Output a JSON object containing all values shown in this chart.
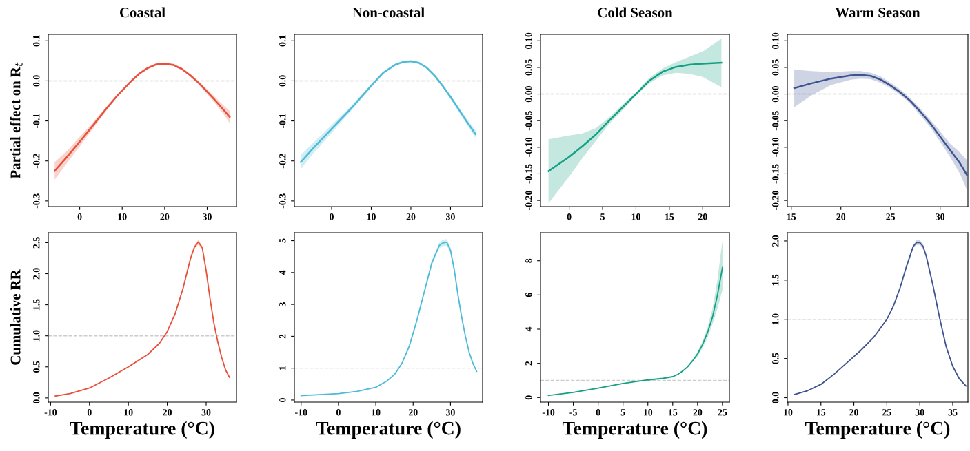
{
  "chart_data": [
    {
      "type": "line",
      "title": "Coastal",
      "ylabel": "Partial effect on R$_{t}$",
      "xlim": [
        -7.4,
        36.9
      ],
      "ylim": [
        -0.314,
        0.116
      ],
      "xticks": [
        0,
        10,
        20,
        30
      ],
      "yticks": [
        {
          "value": 0.1,
          "label": "0.1"
        },
        {
          "value": 0,
          "label": "0.0"
        },
        {
          "value": -0.1,
          "label": "-0.1"
        },
        {
          "value": -0.2,
          "label": "-0.2"
        },
        {
          "value": -0.3,
          "label": "-0.3"
        }
      ],
      "grid": false,
      "ref_lines": [
        {
          "axis": "y",
          "value": 0,
          "color": "#cccccc",
          "line_style": "dashed"
        }
      ],
      "series": [
        {
          "color": "#e8503a",
          "x": [
            -5.9,
            -3,
            0,
            3,
            6,
            9,
            12,
            14,
            16,
            18,
            20,
            22,
            24,
            26,
            28,
            30,
            32,
            34,
            35.3
          ],
          "values": [
            -0.225,
            -0.19,
            -0.152,
            -0.113,
            -0.073,
            -0.035,
            -0.002,
            0.018,
            0.032,
            0.041,
            0.043,
            0.04,
            0.03,
            0.014,
            -0.005,
            -0.027,
            -0.05,
            -0.074,
            -0.09
          ],
          "lower": [
            -0.247,
            -0.205,
            -0.164,
            -0.121,
            -0.078,
            -0.038,
            -0.005,
            0.015,
            0.029,
            0.038,
            0.04,
            0.037,
            0.027,
            0.011,
            -0.009,
            -0.033,
            -0.058,
            -0.085,
            -0.105
          ],
          "upper": [
            -0.203,
            -0.175,
            -0.14,
            -0.105,
            -0.068,
            -0.032,
            0.001,
            0.021,
            0.035,
            0.044,
            0.046,
            0.043,
            0.033,
            0.017,
            -0.001,
            -0.021,
            -0.042,
            -0.063,
            -0.075
          ]
        }
      ]
    },
    {
      "type": "line",
      "title": "Non-coastal",
      "xlim": [
        -9.4,
        38.1
      ],
      "ylim": [
        -0.314,
        0.116
      ],
      "xticks": [
        0,
        10,
        20,
        30
      ],
      "yticks": [
        {
          "value": 0.1,
          "label": "0.1"
        },
        {
          "value": 0,
          "label": "0.0"
        },
        {
          "value": -0.1,
          "label": "-0.1"
        },
        {
          "value": -0.2,
          "label": "-0.2"
        },
        {
          "value": -0.3,
          "label": "-0.3"
        }
      ],
      "grid": false,
      "ref_lines": [
        {
          "axis": "y",
          "value": 0,
          "color": "#cccccc",
          "line_style": "dashed"
        }
      ],
      "series": [
        {
          "color": "#4dbbd8",
          "x": [
            -7.8,
            -5,
            0,
            5,
            10,
            13,
            16,
            18,
            20,
            22,
            24,
            26,
            28,
            30,
            32,
            34,
            36.3
          ],
          "values": [
            -0.203,
            -0.172,
            -0.12,
            -0.068,
            -0.012,
            0.02,
            0.04,
            0.047,
            0.049,
            0.045,
            0.033,
            0.013,
            -0.012,
            -0.04,
            -0.07,
            -0.1,
            -0.133
          ],
          "lower": [
            -0.221,
            -0.186,
            -0.13,
            -0.074,
            -0.016,
            0.017,
            0.037,
            0.044,
            0.046,
            0.042,
            0.03,
            0.01,
            -0.016,
            -0.045,
            -0.076,
            -0.107,
            -0.143
          ],
          "upper": [
            -0.185,
            -0.158,
            -0.11,
            -0.062,
            -0.008,
            0.023,
            0.043,
            0.05,
            0.052,
            0.048,
            0.036,
            0.016,
            -0.008,
            -0.035,
            -0.064,
            -0.093,
            -0.123
          ]
        }
      ]
    },
    {
      "type": "line",
      "title": "Cold Season",
      "xlim": [
        -4.3,
        24.0
      ],
      "ylim": [
        -0.2115,
        0.112
      ],
      "xticks": [
        0,
        5,
        10,
        15,
        20
      ],
      "yticks": [
        {
          "value": 0.1,
          "label": "0.10"
        },
        {
          "value": 0.05,
          "label": "0.05"
        },
        {
          "value": 0,
          "label": "0.00"
        },
        {
          "value": -0.05,
          "label": "-0.05"
        },
        {
          "value": -0.1,
          "label": "-0.10"
        },
        {
          "value": -0.15,
          "label": "-0.15"
        },
        {
          "value": -0.2,
          "label": "-0.20"
        }
      ],
      "grid": false,
      "ref_lines": [
        {
          "axis": "y",
          "value": 0,
          "color": "#cccccc",
          "line_style": "dashed"
        }
      ],
      "series": [
        {
          "color": "#14a085",
          "x": [
            -3.1,
            0,
            2,
            4,
            6,
            8,
            10,
            12,
            14,
            16,
            18,
            20,
            22.8
          ],
          "values": [
            -0.145,
            -0.118,
            -0.098,
            -0.076,
            -0.05,
            -0.025,
            0.0,
            0.025,
            0.042,
            0.051,
            0.055,
            0.057,
            0.059
          ],
          "lower": [
            -0.205,
            -0.155,
            -0.12,
            -0.088,
            -0.056,
            -0.03,
            -0.003,
            0.02,
            0.035,
            0.04,
            0.038,
            0.032,
            0.013
          ],
          "upper": [
            -0.085,
            -0.078,
            -0.074,
            -0.064,
            -0.044,
            -0.02,
            0.003,
            0.03,
            0.048,
            0.06,
            0.07,
            0.08,
            0.104
          ]
        }
      ]
    },
    {
      "type": "line",
      "title": "Warm Season",
      "xlim": [
        14.6,
        32.8
      ],
      "ylim": [
        -0.2115,
        0.112
      ],
      "xticks": [
        15,
        20,
        25,
        30
      ],
      "yticks": [
        {
          "value": 0.1,
          "label": "0.10"
        },
        {
          "value": 0.05,
          "label": "0.05"
        },
        {
          "value": 0,
          "label": "0.00"
        },
        {
          "value": -0.05,
          "label": "-0.05"
        },
        {
          "value": -0.1,
          "label": "-0.10"
        },
        {
          "value": -0.15,
          "label": "-0.15"
        },
        {
          "value": -0.2,
          "label": "-0.20"
        }
      ],
      "grid": false,
      "ref_lines": [
        {
          "axis": "y",
          "value": 0,
          "color": "#cccccc",
          "line_style": "dashed"
        }
      ],
      "series": [
        {
          "color": "#3d5491",
          "x": [
            15.3,
            17,
            19,
            21,
            22,
            23,
            24,
            25,
            26,
            27,
            28,
            29,
            30,
            31,
            32,
            32.7
          ],
          "values": [
            0.011,
            0.02,
            0.029,
            0.035,
            0.036,
            0.034,
            0.027,
            0.016,
            0.003,
            -0.013,
            -0.033,
            -0.055,
            -0.08,
            -0.105,
            -0.13,
            -0.152
          ],
          "lower": [
            -0.025,
            -0.003,
            0.017,
            0.027,
            0.029,
            0.028,
            0.021,
            0.011,
            -0.002,
            -0.018,
            -0.04,
            -0.062,
            -0.09,
            -0.118,
            -0.15,
            -0.18
          ],
          "upper": [
            0.046,
            0.043,
            0.041,
            0.043,
            0.043,
            0.04,
            0.033,
            0.021,
            0.008,
            -0.008,
            -0.027,
            -0.048,
            -0.07,
            -0.093,
            -0.11,
            -0.124
          ]
        }
      ]
    },
    {
      "type": "line",
      "xlabel": "Temperature (°C)",
      "ylabel": "Cumulative RR",
      "xlim": [
        -10.6,
        37.8
      ],
      "ylim": [
        -0.068,
        2.66
      ],
      "xticks": [
        -10,
        0,
        10,
        20,
        30
      ],
      "yticks": [
        {
          "value": 0,
          "label": "0.0"
        },
        {
          "value": 0.5,
          "label": "0.5"
        },
        {
          "value": 1,
          "label": "1.0"
        },
        {
          "value": 1.5,
          "label": "1.5"
        },
        {
          "value": 2,
          "label": "2.0"
        },
        {
          "value": 2.5,
          "label": "2.5"
        }
      ],
      "grid": false,
      "ref_lines": [
        {
          "axis": "y",
          "value": 1,
          "color": "#cccccc",
          "line_style": "dashed"
        }
      ],
      "series": [
        {
          "color": "#e8503a",
          "x": [
            -8.8,
            -5,
            0,
            5,
            10,
            15,
            18,
            20,
            22,
            24,
            25,
            26,
            27,
            28,
            29,
            30,
            31,
            32,
            33,
            34,
            35,
            36
          ],
          "values": [
            0.03,
            0.07,
            0.16,
            0.32,
            0.5,
            0.7,
            0.88,
            1.07,
            1.35,
            1.75,
            2.0,
            2.25,
            2.43,
            2.51,
            2.42,
            2.05,
            1.6,
            1.2,
            0.9,
            0.65,
            0.45,
            0.33
          ],
          "lower": [
            0.025,
            0.065,
            0.155,
            0.315,
            0.495,
            0.69,
            0.87,
            1.06,
            1.33,
            1.73,
            1.97,
            2.22,
            2.4,
            2.47,
            2.39,
            2.02,
            1.58,
            1.18,
            0.88,
            0.64,
            0.44,
            0.32
          ],
          "upper": [
            0.035,
            0.075,
            0.165,
            0.325,
            0.505,
            0.71,
            0.89,
            1.08,
            1.37,
            1.77,
            2.03,
            2.28,
            2.46,
            2.55,
            2.45,
            2.08,
            1.62,
            1.22,
            0.92,
            0.66,
            0.46,
            0.34
          ]
        }
      ]
    },
    {
      "type": "line",
      "xlabel": "Temperature (°C)",
      "xlim": [
        -11.8,
        38.6
      ],
      "ylim": [
        -0.066,
        5.25
      ],
      "xticks": [
        -10,
        0,
        10,
        20,
        30
      ],
      "yticks": [
        0,
        1,
        2,
        3,
        4,
        5
      ],
      "grid": false,
      "ref_lines": [
        {
          "axis": "y",
          "value": 1,
          "color": "#cccccc",
          "line_style": "dashed"
        }
      ],
      "series": [
        {
          "color": "#4dbbd8",
          "x": [
            -10,
            -5,
            0,
            5,
            10,
            13,
            15,
            17,
            19,
            21,
            23,
            25,
            27,
            28,
            29,
            30,
            31,
            32,
            33,
            34,
            35,
            36,
            37
          ],
          "values": [
            0.14,
            0.17,
            0.2,
            0.27,
            0.4,
            0.6,
            0.8,
            1.15,
            1.7,
            2.5,
            3.4,
            4.3,
            4.85,
            4.93,
            4.95,
            4.7,
            4.1,
            3.3,
            2.6,
            2.0,
            1.5,
            1.15,
            0.9
          ],
          "lower": [
            0.13,
            0.16,
            0.19,
            0.26,
            0.39,
            0.59,
            0.78,
            1.12,
            1.66,
            2.45,
            3.34,
            4.22,
            4.76,
            4.83,
            4.85,
            4.6,
            4.02,
            3.24,
            2.55,
            1.96,
            1.47,
            1.12,
            0.86
          ],
          "upper": [
            0.15,
            0.18,
            0.21,
            0.28,
            0.41,
            0.61,
            0.82,
            1.18,
            1.74,
            2.55,
            3.46,
            4.38,
            4.94,
            5.03,
            5.05,
            4.8,
            4.18,
            3.36,
            2.65,
            2.04,
            1.53,
            1.18,
            0.94
          ]
        }
      ]
    },
    {
      "type": "line",
      "xlabel": "Temperature (°C)",
      "xlim": [
        -11.6,
        26.4
      ],
      "ylim": [
        -0.27,
        9.64
      ],
      "xticks": [
        -10,
        -5,
        0,
        5,
        10,
        15,
        20,
        25
      ],
      "yticks": [
        0,
        2,
        4,
        6,
        8
      ],
      "grid": false,
      "ref_lines": [
        {
          "axis": "y",
          "value": 1,
          "color": "#cccccc",
          "line_style": "dashed"
        }
      ],
      "series": [
        {
          "color": "#14a085",
          "x": [
            -10,
            -5,
            0,
            5,
            10,
            13,
            15,
            16,
            17,
            18,
            19,
            20,
            21,
            22,
            23,
            24,
            25
          ],
          "values": [
            0.12,
            0.3,
            0.55,
            0.82,
            1.03,
            1.12,
            1.22,
            1.35,
            1.55,
            1.8,
            2.15,
            2.55,
            3.1,
            3.8,
            4.7,
            6.0,
            7.6
          ],
          "lower": [
            0.1,
            0.28,
            0.53,
            0.8,
            1.01,
            1.1,
            1.2,
            1.32,
            1.51,
            1.75,
            2.08,
            2.4,
            2.9,
            3.5,
            4.3,
            5.2,
            6.3
          ],
          "upper": [
            0.14,
            0.32,
            0.57,
            0.84,
            1.05,
            1.14,
            1.24,
            1.38,
            1.59,
            1.85,
            2.22,
            2.7,
            3.3,
            4.1,
            5.2,
            6.9,
            9.2
          ]
        }
      ]
    },
    {
      "type": "line",
      "xlabel": "Temperature (°C)",
      "xlim": [
        9.9,
        37.3
      ],
      "ylim": [
        -0.057,
        2.105
      ],
      "xticks": [
        10,
        15,
        20,
        25,
        30,
        35
      ],
      "yticks": [
        {
          "value": 0,
          "label": "0.0"
        },
        {
          "value": 0.5,
          "label": "0.5"
        },
        {
          "value": 1,
          "label": "1.0"
        },
        {
          "value": 1.5,
          "label": "1.5"
        },
        {
          "value": 2,
          "label": "2.0"
        }
      ],
      "grid": false,
      "ref_lines": [
        {
          "axis": "y",
          "value": 1,
          "color": "#cccccc",
          "line_style": "dashed"
        }
      ],
      "series": [
        {
          "color": "#3d5491",
          "x": [
            11,
            13,
            15,
            17,
            19,
            21,
            23,
            25,
            26,
            27,
            28,
            29,
            29.5,
            30,
            30.5,
            31,
            32,
            33,
            34,
            35,
            36,
            37
          ],
          "values": [
            0.04,
            0.09,
            0.17,
            0.3,
            0.45,
            0.6,
            0.77,
            1.0,
            1.17,
            1.4,
            1.68,
            1.93,
            1.98,
            1.98,
            1.93,
            1.8,
            1.43,
            1.02,
            0.65,
            0.4,
            0.24,
            0.15
          ],
          "lower": [
            0.035,
            0.085,
            0.165,
            0.295,
            0.445,
            0.595,
            0.765,
            0.99,
            1.16,
            1.39,
            1.66,
            1.91,
            1.95,
            1.95,
            1.9,
            1.78,
            1.41,
            1.0,
            0.64,
            0.39,
            0.23,
            0.14
          ],
          "upper": [
            0.045,
            0.095,
            0.175,
            0.305,
            0.455,
            0.605,
            0.775,
            1.01,
            1.18,
            1.41,
            1.7,
            1.95,
            2.01,
            2.01,
            1.96,
            1.82,
            1.45,
            1.04,
            0.66,
            0.41,
            0.25,
            0.16
          ]
        }
      ]
    }
  ]
}
